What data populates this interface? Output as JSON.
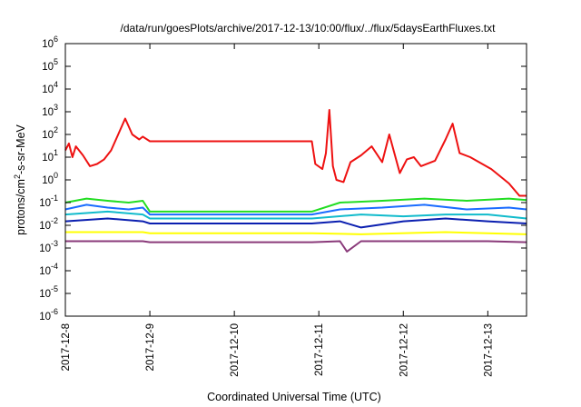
{
  "chart_data": {
    "type": "line",
    "title": "/data/run/goesPlots/archive/2017-12-13/10:00/flux/../flux/5daysEarthFluxes.txt",
    "xlabel": "Coordinated Universal Time (UTC)",
    "ylabel": "protons/cm2-s-sr-MeV",
    "y_scale": "log",
    "ylim": [
      1e-06,
      1000000.0
    ],
    "xlim": [
      "2017-12-08",
      "2017-12-13 11:00"
    ],
    "grid": false,
    "legend": "none",
    "x_ticks": [
      "2017-12-8",
      "2017-12-9",
      "2017-12-10",
      "2017-12-11",
      "2017-12-12",
      "2017-12-13"
    ],
    "y_ticks": [
      {
        "base": "10",
        "exp": "-6",
        "value": 1e-06
      },
      {
        "base": "10",
        "exp": "-5",
        "value": 1e-05
      },
      {
        "base": "10",
        "exp": "-4",
        "value": 0.0001
      },
      {
        "base": "10",
        "exp": "-3",
        "value": 0.001
      },
      {
        "base": "10",
        "exp": "-2",
        "value": 0.01
      },
      {
        "base": "10",
        "exp": "-1",
        "value": 0.1
      },
      {
        "base": "10",
        "exp": "0",
        "value": 1
      },
      {
        "base": "10",
        "exp": "1",
        "value": 10
      },
      {
        "base": "10",
        "exp": "2",
        "value": 100
      },
      {
        "base": "10",
        "exp": "3",
        "value": 1000
      },
      {
        "base": "10",
        "exp": "4",
        "value": 10000
      },
      {
        "base": "10",
        "exp": "5",
        "value": 100000
      },
      {
        "base": "10",
        "exp": "6",
        "value": 1000000
      }
    ],
    "series": [
      {
        "color": "#ee1111",
        "x": [
          "2017-12-08 00:00",
          "2017-12-08 01:00",
          "2017-12-08 02:00",
          "2017-12-08 03:00",
          "2017-12-08 05:00",
          "2017-12-08 07:00",
          "2017-12-08 09:00",
          "2017-12-08 11:00",
          "2017-12-08 13:00",
          "2017-12-08 15:00",
          "2017-12-08 17:00",
          "2017-12-08 19:00",
          "2017-12-08 21:00",
          "2017-12-08 22:00",
          "2017-12-09 00:00",
          "2017-12-10 22:00",
          "2017-12-10 23:00",
          "2017-12-11 01:00",
          "2017-12-11 02:00",
          "2017-12-11 03:00",
          "2017-12-11 04:00",
          "2017-12-11 05:00",
          "2017-12-11 07:00",
          "2017-12-11 09:00",
          "2017-12-11 12:00",
          "2017-12-11 15:00",
          "2017-12-11 18:00",
          "2017-12-11 20:00",
          "2017-12-11 23:00",
          "2017-12-12 01:00",
          "2017-12-12 03:00",
          "2017-12-12 05:00",
          "2017-12-12 09:00",
          "2017-12-12 12:00",
          "2017-12-12 14:00",
          "2017-12-12 16:00",
          "2017-12-12 19:00",
          "2017-12-13 01:00",
          "2017-12-13 06:00",
          "2017-12-13 09:00",
          "2017-12-13 11:00"
        ],
        "values": [
          20,
          40,
          10,
          30,
          12,
          4,
          5,
          8,
          20,
          100,
          500,
          100,
          60,
          80,
          50,
          50,
          5,
          3,
          15,
          1200,
          4,
          1,
          0.8,
          6,
          12,
          30,
          6,
          100,
          2,
          8,
          10,
          4,
          7,
          60,
          300,
          15,
          10,
          3,
          0.7,
          0.2,
          0.2
        ]
      },
      {
        "color": "#22dd22",
        "x": [
          "2017-12-08 00:00",
          "2017-12-08 06:00",
          "2017-12-08 12:00",
          "2017-12-08 18:00",
          "2017-12-08 22:00",
          "2017-12-09 00:00",
          "2017-12-10 22:00",
          "2017-12-11 06:00",
          "2017-12-11 18:00",
          "2017-12-12 06:00",
          "2017-12-12 18:00",
          "2017-12-13 06:00",
          "2017-12-13 11:00"
        ],
        "values": [
          0.1,
          0.15,
          0.12,
          0.1,
          0.12,
          0.04,
          0.04,
          0.1,
          0.12,
          0.15,
          0.12,
          0.15,
          0.13
        ]
      },
      {
        "color": "#1a6cff",
        "x": [
          "2017-12-08 00:00",
          "2017-12-08 06:00",
          "2017-12-08 12:00",
          "2017-12-08 18:00",
          "2017-12-08 22:00",
          "2017-12-09 00:00",
          "2017-12-10 22:00",
          "2017-12-11 06:00",
          "2017-12-11 18:00",
          "2017-12-12 06:00",
          "2017-12-12 18:00",
          "2017-12-13 06:00",
          "2017-12-13 11:00"
        ],
        "values": [
          0.05,
          0.08,
          0.06,
          0.05,
          0.06,
          0.03,
          0.03,
          0.05,
          0.06,
          0.08,
          0.05,
          0.06,
          0.05
        ]
      },
      {
        "color": "#11bbcc",
        "x": [
          "2017-12-08 00:00",
          "2017-12-08 12:00",
          "2017-12-08 22:00",
          "2017-12-09 00:00",
          "2017-12-10 22:00",
          "2017-12-11 12:00",
          "2017-12-12 00:00",
          "2017-12-12 12:00",
          "2017-12-13 00:00",
          "2017-12-13 11:00"
        ],
        "values": [
          0.03,
          0.04,
          0.03,
          0.02,
          0.02,
          0.03,
          0.025,
          0.03,
          0.03,
          0.02
        ]
      },
      {
        "color": "#0b1fb0",
        "x": [
          "2017-12-08 00:00",
          "2017-12-08 12:00",
          "2017-12-08 22:00",
          "2017-12-09 00:00",
          "2017-12-10 22:00",
          "2017-12-11 06:00",
          "2017-12-11 12:00",
          "2017-12-12 00:00",
          "2017-12-12 12:00",
          "2017-12-13 00:00",
          "2017-12-13 11:00"
        ],
        "values": [
          0.015,
          0.02,
          0.015,
          0.012,
          0.012,
          0.015,
          0.008,
          0.015,
          0.02,
          0.015,
          0.012
        ]
      },
      {
        "color": "#ffff00",
        "x": [
          "2017-12-08 00:00",
          "2017-12-08 22:00",
          "2017-12-09 00:00",
          "2017-12-10 22:00",
          "2017-12-11 12:00",
          "2017-12-12 12:00",
          "2017-12-13 11:00"
        ],
        "values": [
          0.005,
          0.005,
          0.0045,
          0.0045,
          0.004,
          0.005,
          0.004
        ]
      },
      {
        "color": "#8a3a7a",
        "x": [
          "2017-12-08 00:00",
          "2017-12-08 12:00",
          "2017-12-08 22:00",
          "2017-12-09 00:00",
          "2017-12-10 22:00",
          "2017-12-11 06:00",
          "2017-12-11 08:00",
          "2017-12-11 12:00",
          "2017-12-12 00:00",
          "2017-12-12 12:00",
          "2017-12-13 00:00",
          "2017-12-13 11:00"
        ],
        "values": [
          0.002,
          0.002,
          0.002,
          0.0018,
          0.0018,
          0.002,
          0.0007,
          0.002,
          0.002,
          0.002,
          0.002,
          0.0018
        ]
      }
    ]
  }
}
